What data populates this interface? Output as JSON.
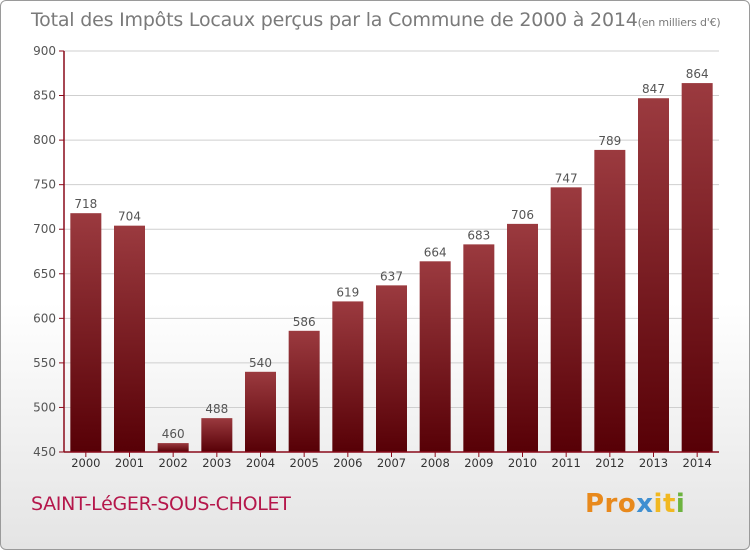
{
  "title": {
    "main": "Total des Impôts Locaux perçus par la Commune de 2000 à 2014",
    "unit": "(en milliers d'€)"
  },
  "commune": "SAINT-LéGER-SOUS-CHOLET",
  "logo": {
    "text": "Proxiti",
    "parts": [
      "Pro",
      "x",
      "it",
      "i"
    ]
  },
  "colors": {
    "bar_top": "#9b3a3f",
    "bar_bottom": "#570006",
    "axis": "#8a0a1a",
    "grid": "#cfcfcf",
    "commune": "#b5174b"
  },
  "chart_data": {
    "type": "bar",
    "title": "Total des Impôts Locaux perçus par la Commune de 2000 à 2014",
    "xlabel": "",
    "ylabel": "",
    "categories": [
      "2000",
      "2001",
      "2002",
      "2003",
      "2004",
      "2005",
      "2006",
      "2007",
      "2008",
      "2009",
      "2010",
      "2011",
      "2012",
      "2013",
      "2014"
    ],
    "values": [
      718,
      704,
      460,
      488,
      540,
      586,
      619,
      637,
      664,
      683,
      706,
      747,
      789,
      847,
      864
    ],
    "ylim": [
      450,
      900
    ],
    "yticks": [
      450,
      500,
      550,
      600,
      650,
      700,
      750,
      800,
      850,
      900
    ],
    "grid": true
  }
}
